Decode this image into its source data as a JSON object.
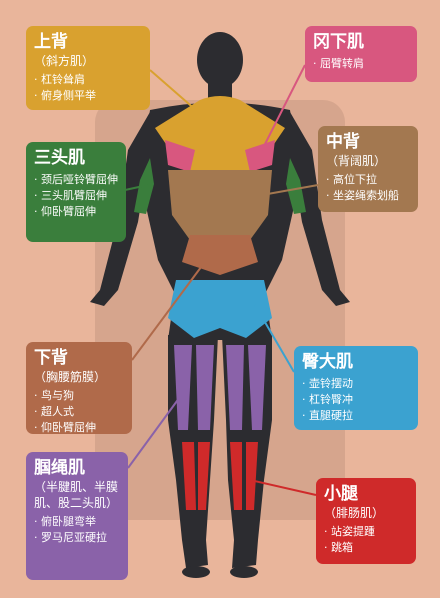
{
  "colors": {
    "upper_back": "#d9a12f",
    "rhomboid": "#d8577f",
    "mid_back": "#a37850",
    "triceps": "#3a7e3c",
    "lower_back": "#b06a4a",
    "glutes": "#3ba2d0",
    "hamstrings": "#8a62a9",
    "calves": "#cf2a2a",
    "body_dark": "#2c2c30",
    "bg": "#e9b59b"
  },
  "labels": [
    {
      "key": "upper_back",
      "title": "上背",
      "sub": "（斜方肌）",
      "items": [
        "杠铃耸肩",
        "俯身侧平举"
      ]
    },
    {
      "key": "rhomboid",
      "title": "冈下肌",
      "sub": "",
      "items": [
        "屈臂转肩"
      ]
    },
    {
      "key": "mid_back",
      "title": "中背",
      "sub": "（背阔肌）",
      "items": [
        "高位下拉",
        "坐姿绳索划船"
      ]
    },
    {
      "key": "triceps",
      "title": "三头肌",
      "sub": "",
      "items": [
        "颈后哑铃臂屈伸",
        "三头肌臂屈伸",
        "仰卧臂屈伸"
      ]
    },
    {
      "key": "lower_back",
      "title": "下背",
      "sub": "（胸腰筋膜）",
      "items": [
        "鸟与狗",
        "超人式",
        "仰卧臂屈伸"
      ]
    },
    {
      "key": "glutes",
      "title": "臀大肌",
      "sub": "",
      "items": [
        "壶铃摆动",
        "杠铃臀冲",
        "直腿硬拉"
      ]
    },
    {
      "key": "hamstrings",
      "title": "腘绳肌",
      "sub": "（半腱肌、半膜肌、股二头肌）",
      "items": [
        "俯卧腿弯举",
        "罗马尼亚硬拉"
      ]
    },
    {
      "key": "calves",
      "title": "小腿",
      "sub": "（腓肠肌）",
      "items": [
        "站姿提踵",
        "跳箱"
      ]
    }
  ]
}
